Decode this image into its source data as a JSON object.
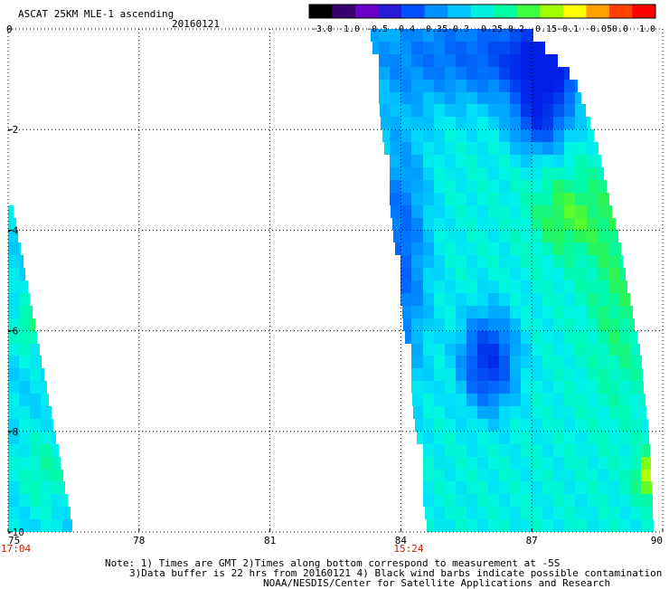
{
  "header": {
    "title": "ASCAT 25KM MLE-1 ascending",
    "date": "20160121"
  },
  "colorbar": {
    "labels": [
      "-3.0",
      "-1.0",
      "-0.5",
      "-0.4",
      "-0.35",
      "-0.3",
      "-0.25",
      "-0.2",
      "-0.15",
      "-0.1",
      "-0.05",
      "0.0",
      "1.0"
    ],
    "colors": [
      "#000000",
      "#3a006e",
      "#6a00c8",
      "#2a18d8",
      "#0050ff",
      "#0090ff",
      "#00c8ff",
      "#00f0e0",
      "#00ffa0",
      "#40ff40",
      "#a0ff00",
      "#ffff00",
      "#ffa000",
      "#ff4000",
      "#ff0000"
    ]
  },
  "footer": {
    "note1": "Note: 1) Times are GMT 2)Times along bottom correspond to measurement at -5S",
    "note2": "3)Data buffer is 22 hrs from 20160121 4) Black wind barbs indicate possible contamination",
    "note3": "NOAA/NESDIS/Center for Satellite Applications and Research"
  },
  "times": [
    {
      "label": "17:04",
      "lon": 75
    },
    {
      "label": "15:24",
      "lon": 84
    }
  ],
  "chart_data": {
    "type": "heatmap",
    "title": "ASCAT 25KM MLE-1 ascending",
    "subtitle": "20160121",
    "xlabel": "",
    "ylabel": "",
    "xlim": [
      75,
      90
    ],
    "ylim": [
      -10,
      0
    ],
    "xticks": [
      "75",
      "78",
      "81",
      "84",
      "87",
      "90"
    ],
    "yticks": [
      "0",
      "-2",
      "-4",
      "-6",
      "-8",
      "-10"
    ],
    "grid": true,
    "colorscale": "MLE-1, -3.0 to 1.0",
    "swaths": [
      {
        "name": "ascending pass near 15:24",
        "edge_west": [
          [
            0.0,
            83.3
          ],
          [
            -10.0,
            84.6
          ]
        ],
        "edge_east": [
          [
            0.0,
            86.9
          ],
          [
            -1.0,
            88.0
          ],
          [
            -2.3,
            88.5
          ],
          [
            -4.2,
            89.0
          ],
          [
            -6.5,
            89.5
          ],
          [
            -8.2,
            89.7
          ],
          [
            -10.0,
            89.8
          ]
        ],
        "base_level": -0.25,
        "features": [
          {
            "name": "high-latitude low band",
            "lat": -0.5,
            "lon": 86.0,
            "value": -0.36,
            "extent": [
              1.0,
              3.0
            ]
          },
          {
            "name": "upper-right minimum",
            "lat": -0.6,
            "lon": 87.4,
            "value": -0.42,
            "extent": [
              0.6,
              0.9
            ]
          },
          {
            "name": "minimum near 87E",
            "lat": -1.7,
            "lon": 87.2,
            "value": -0.42,
            "extent": [
              0.7,
              0.6
            ]
          },
          {
            "name": "minimum near 86E",
            "lat": -6.6,
            "lon": 86.0,
            "value": -0.43,
            "extent": [
              0.9,
              0.6
            ]
          },
          {
            "name": "western edge low",
            "lat": -4.5,
            "lon": 84.0,
            "value": -0.36,
            "extent": [
              2.5,
              0.6
            ]
          },
          {
            "name": "green maximum",
            "lat": -3.7,
            "lon": 87.8,
            "value": -0.18,
            "extent": [
              0.8,
              0.8
            ]
          },
          {
            "name": "green east edge",
            "lat": -5.0,
            "lon": 89.0,
            "value": -0.2,
            "extent": [
              2.5,
              0.8
            ]
          },
          {
            "name": "yellow-green corner",
            "lat": -8.9,
            "lon": 89.7,
            "value": -0.1,
            "extent": [
              0.4,
              0.3
            ]
          }
        ]
      },
      {
        "name": "ascending pass near 17:04",
        "edge_west": [
          [
            -3.5,
            75.0
          ],
          [
            -10.0,
            75.0
          ]
        ],
        "edge_east": [
          [
            -3.5,
            75.1
          ],
          [
            -10.0,
            76.5
          ]
        ],
        "base_level": -0.27,
        "features": [
          {
            "name": "green patch",
            "lat": -5.9,
            "lon": 75.5,
            "value": -0.2,
            "extent": [
              0.5,
              0.4
            ]
          },
          {
            "name": "green lower band",
            "lat": -8.8,
            "lon": 75.8,
            "value": -0.22,
            "extent": [
              0.8,
              0.6
            ]
          }
        ]
      }
    ]
  }
}
